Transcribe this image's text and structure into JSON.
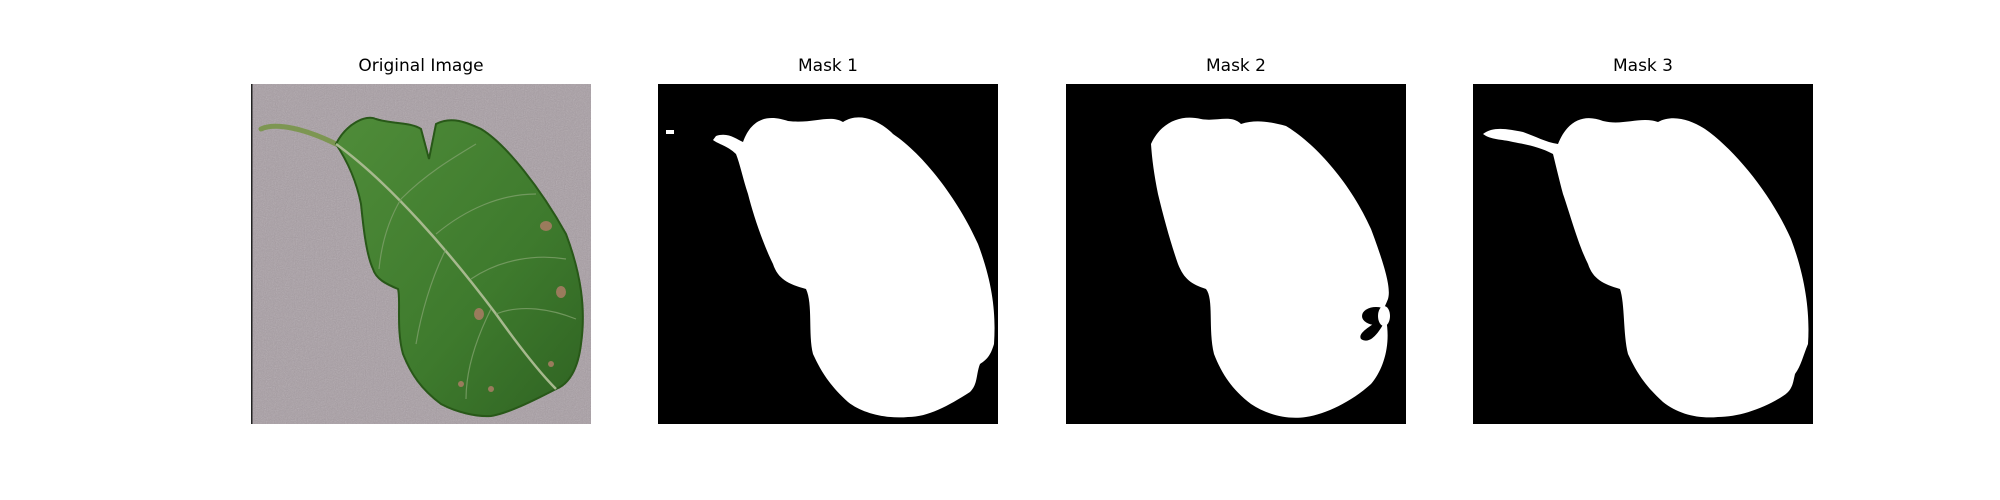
{
  "panels": [
    {
      "title": "Original Image",
      "kind": "photo"
    },
    {
      "title": "Mask 1",
      "kind": "mask"
    },
    {
      "title": "Mask 2",
      "kind": "mask"
    },
    {
      "title": "Mask 3",
      "kind": "mask"
    }
  ],
  "colors": {
    "background": "#ffffff",
    "mask_background": "#000000",
    "mask_foreground": "#ffffff",
    "photo_background": "#a89ea4",
    "leaf": "#3f7f2e",
    "leaf_dark": "#2f6322",
    "vein": "#a7b98e",
    "spot": "#9a7b5c"
  }
}
